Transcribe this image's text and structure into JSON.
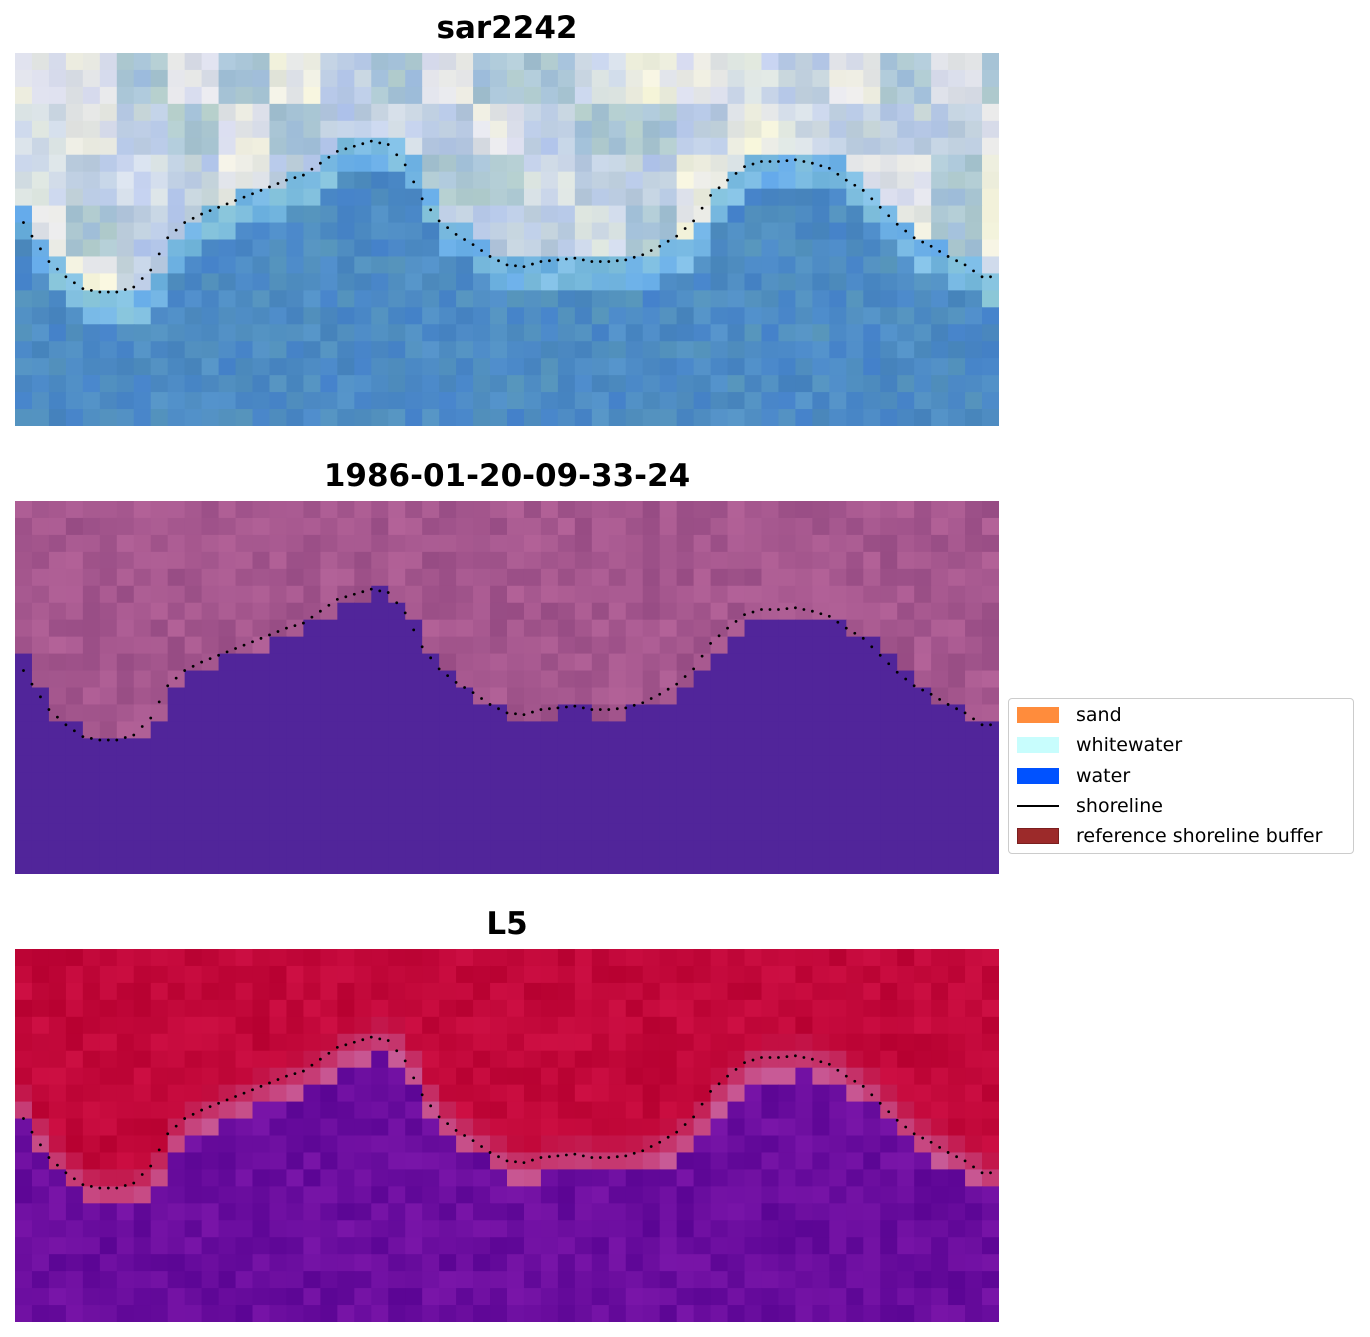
{
  "panels": [
    {
      "title": "sar2242",
      "palette": "rgb"
    },
    {
      "title": "1986-01-20-09-33-24",
      "palette": "class"
    },
    {
      "title": "L5",
      "palette": "prob"
    }
  ],
  "legend": {
    "items": [
      {
        "label": "sand",
        "kind": "patch",
        "color": "#ff8c3c",
        "edge": "#ff8c3c"
      },
      {
        "label": "whitewater",
        "kind": "patch",
        "color": "#c8fdfd",
        "edge": "#c8fdfd"
      },
      {
        "label": "water",
        "kind": "patch",
        "color": "#0052ff",
        "edge": "#0052ff"
      },
      {
        "label": "shoreline",
        "kind": "line",
        "color": "#000000"
      },
      {
        "label": "reference shoreline buffer",
        "kind": "patch",
        "color": "#9c2a2a",
        "edge": "#7a1f1f"
      }
    ]
  },
  "chart_data": {
    "type": "heatmap",
    "grid": {
      "cols": 58,
      "rows": 22
    },
    "shoreline_profile_rows": [
      9.2,
      10.8,
      12.3,
      13.2,
      13.9,
      14.1,
      14.1,
      13.8,
      12.8,
      10.9,
      10.0,
      9.5,
      9.1,
      8.7,
      8.3,
      7.9,
      7.5,
      7.2,
      6.5,
      5.8,
      5.5,
      5.2,
      5.4,
      6.6,
      8.6,
      9.9,
      10.7,
      11.3,
      12.0,
      12.5,
      12.6,
      12.3,
      12.2,
      12.1,
      12.3,
      12.3,
      12.2,
      11.9,
      11.4,
      10.8,
      9.9,
      8.4,
      7.5,
      6.7,
      6.4,
      6.4,
      6.3,
      6.5,
      6.8,
      7.5,
      8.1,
      9.1,
      10.1,
      10.9,
      11.4,
      12.0,
      12.5,
      13.2
    ],
    "colors": {
      "sand": "#ff8c3c",
      "whitewater": "#c8fdfd",
      "water": "#0052ff",
      "shoreline": "#000000",
      "reference_buffer": "#9c2a2a",
      "class_water": "#51259a",
      "class_land": "#a5578e",
      "prob_land": "#c2083a",
      "prob_water": "#6a0d9e"
    },
    "grid_lines": false,
    "legend_position": "center-right"
  }
}
